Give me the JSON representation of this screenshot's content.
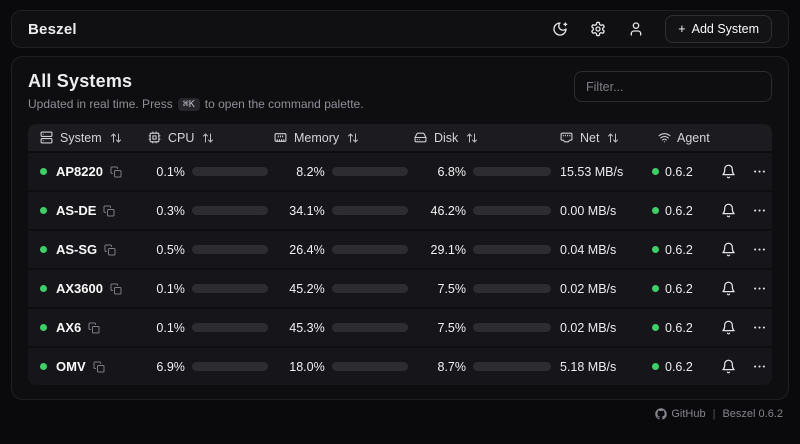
{
  "topbar": {
    "brand": "Beszel",
    "add_system_label": "Add System",
    "add_system_plus": "+"
  },
  "page": {
    "title": "All Systems",
    "subtitle_prefix": "Updated in real time. Press",
    "kbd": "⌘K",
    "subtitle_suffix": "to open the command palette.",
    "filter_placeholder": "Filter..."
  },
  "table": {
    "columns": [
      {
        "label": "System",
        "icon": "server-icon",
        "sortable": true
      },
      {
        "label": "CPU",
        "icon": "cpu-icon",
        "sortable": true
      },
      {
        "label": "Memory",
        "icon": "memory-icon",
        "sortable": true
      },
      {
        "label": "Disk",
        "icon": "hard-drive-icon",
        "sortable": true
      },
      {
        "label": "Net",
        "icon": "ethernet-icon",
        "sortable": true
      },
      {
        "label": "Agent",
        "icon": "wifi-icon",
        "sortable": false
      }
    ]
  },
  "systems": [
    {
      "name": "AP8220",
      "status": "up",
      "cpu": "0.1%",
      "cpu_pct": 0.1,
      "memory": "8.2%",
      "memory_pct": 8.2,
      "disk": "6.8%",
      "disk_pct": 6.8,
      "net": "15.53 MB/s",
      "agent": "0.6.2"
    },
    {
      "name": "AS-DE",
      "status": "up",
      "cpu": "0.3%",
      "cpu_pct": 0.3,
      "memory": "34.1%",
      "memory_pct": 34.1,
      "disk": "46.2%",
      "disk_pct": 46.2,
      "net": "0.00 MB/s",
      "agent": "0.6.2"
    },
    {
      "name": "AS-SG",
      "status": "up",
      "cpu": "0.5%",
      "cpu_pct": 0.5,
      "memory": "26.4%",
      "memory_pct": 26.4,
      "disk": "29.1%",
      "disk_pct": 29.1,
      "net": "0.04 MB/s",
      "agent": "0.6.2"
    },
    {
      "name": "AX3600",
      "status": "up",
      "cpu": "0.1%",
      "cpu_pct": 0.1,
      "memory": "45.2%",
      "memory_pct": 45.2,
      "disk": "7.5%",
      "disk_pct": 7.5,
      "net": "0.02 MB/s",
      "agent": "0.6.2"
    },
    {
      "name": "AX6",
      "status": "up",
      "cpu": "0.1%",
      "cpu_pct": 0.1,
      "memory": "45.3%",
      "memory_pct": 45.3,
      "disk": "7.5%",
      "disk_pct": 7.5,
      "net": "0.02 MB/s",
      "agent": "0.6.2"
    },
    {
      "name": "OMV",
      "status": "up",
      "cpu": "6.9%",
      "cpu_pct": 6.9,
      "memory": "18.0%",
      "memory_pct": 18.0,
      "disk": "8.7%",
      "disk_pct": 8.7,
      "net": "5.18 MB/s",
      "agent": "0.6.2"
    }
  ],
  "footer": {
    "github_label": "GitHub",
    "separator": "|",
    "version_label": "Beszel 0.6.2"
  },
  "colors": {
    "accent": "#40bf5f",
    "status_dot": "#3fce68",
    "card_bg": "#0e0e11",
    "row_bg": "#16161a",
    "header_row_bg": "#1c1c20"
  }
}
